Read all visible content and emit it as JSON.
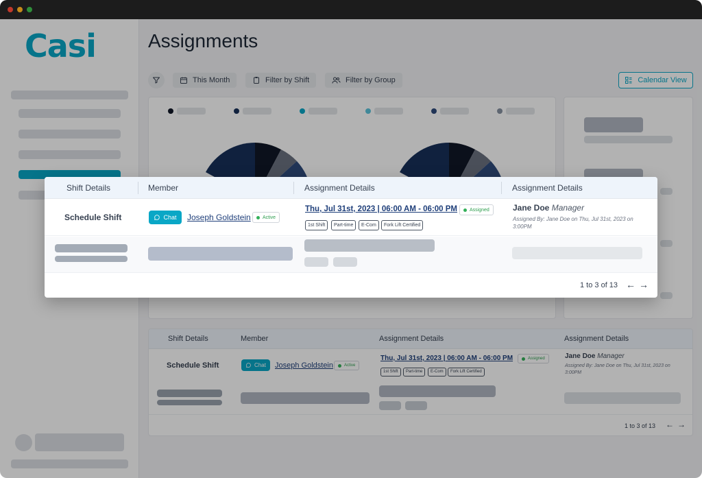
{
  "app": {
    "logo": "Casi",
    "page_title": "Assignments"
  },
  "toolbar": {
    "this_month": "This Month",
    "filter_by_shift": "Filter by Shift",
    "filter_by_group": "Filter by Group",
    "calendar_view": "Calendar View"
  },
  "colors": {
    "brand": "#0aa7c6",
    "link": "#1f3f7a",
    "active_green": "#34b05a",
    "legend": [
      "#111827",
      "#17305a",
      "#0aa7c6",
      "#5cc3dc",
      "#2f4b7c",
      "#8793a3"
    ]
  },
  "table": {
    "headers": [
      "Shift Details",
      "Member",
      "Assignment Details",
      "Assignment Details"
    ],
    "rows": [
      {
        "shift": "Schedule Shift",
        "chat_label": "Chat",
        "member": "Joseph Goldstein",
        "member_status": "Active",
        "date": "Thu, Jul 31st, 2023 | 06:00 AM - 06:00 PM",
        "assign_status": "Assigned",
        "tags": [
          "1st Shift",
          "Part-time",
          "E-Com",
          "Fork Lift Certified"
        ],
        "manager_name": "Jane Doe",
        "manager_role": "Manager",
        "assigned_by": "Assigned By: Jane Doe on Thu, Jul 31st, 2023 on 3:00PM"
      }
    ],
    "pagination": "1 to 3 of 13"
  }
}
